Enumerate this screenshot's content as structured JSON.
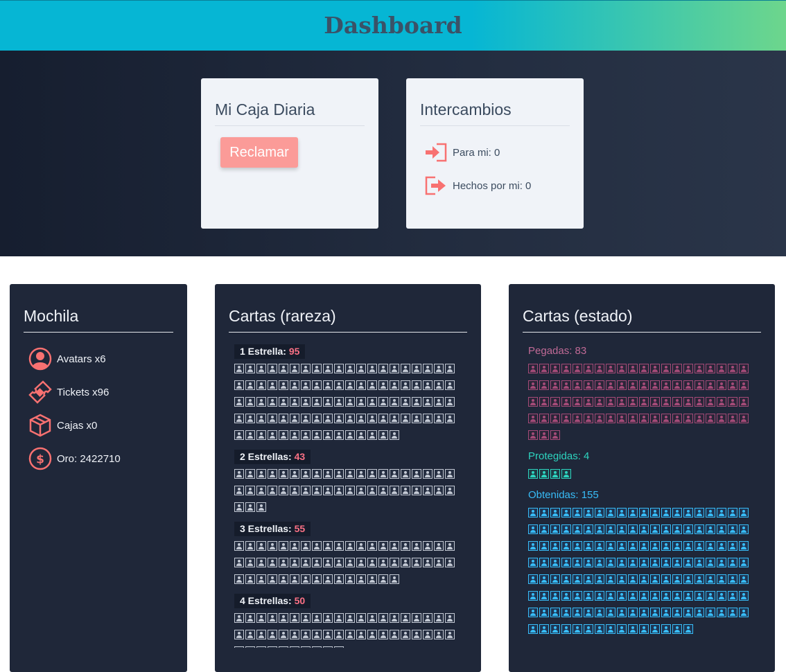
{
  "header": {
    "title": "Dashboard"
  },
  "daily_box": {
    "title": "Mi Caja Diaria",
    "claim_label": "Reclamar"
  },
  "trades": {
    "title": "Intercambios",
    "incoming": "Para mi: 0",
    "outgoing": "Hechos por mi: 0"
  },
  "backpack": {
    "title": "Mochila",
    "items": [
      {
        "icon": "avatar-icon",
        "label": "Avatars x6"
      },
      {
        "icon": "ticket-icon",
        "label": "Tickets x96"
      },
      {
        "icon": "box-icon",
        "label": "Cajas x0"
      },
      {
        "icon": "coin-icon",
        "label": "Oro: 2422710"
      }
    ]
  },
  "rarity": {
    "title": "Cartas (rareza)",
    "groups": [
      {
        "label": "1 Estrella:",
        "count": 95
      },
      {
        "label": "2 Estrellas:",
        "count": 43
      },
      {
        "label": "3 Estrellas:",
        "count": 55
      },
      {
        "label": "4 Estrellas:",
        "count": 50
      }
    ]
  },
  "status": {
    "title": "Cartas (estado)",
    "groups": [
      {
        "label": "Pegadas: 83",
        "count": 83,
        "color": "#a44b78"
      },
      {
        "label": "Protegidas: 4",
        "count": 4,
        "color": "#2dd4bf"
      },
      {
        "label": "Obtenidas: 155",
        "count": 155,
        "color": "#38bdf8"
      }
    ]
  },
  "colors": {
    "accent": "#fb7185",
    "header_start": "#06b6d4",
    "header_end": "#6dd68c"
  }
}
